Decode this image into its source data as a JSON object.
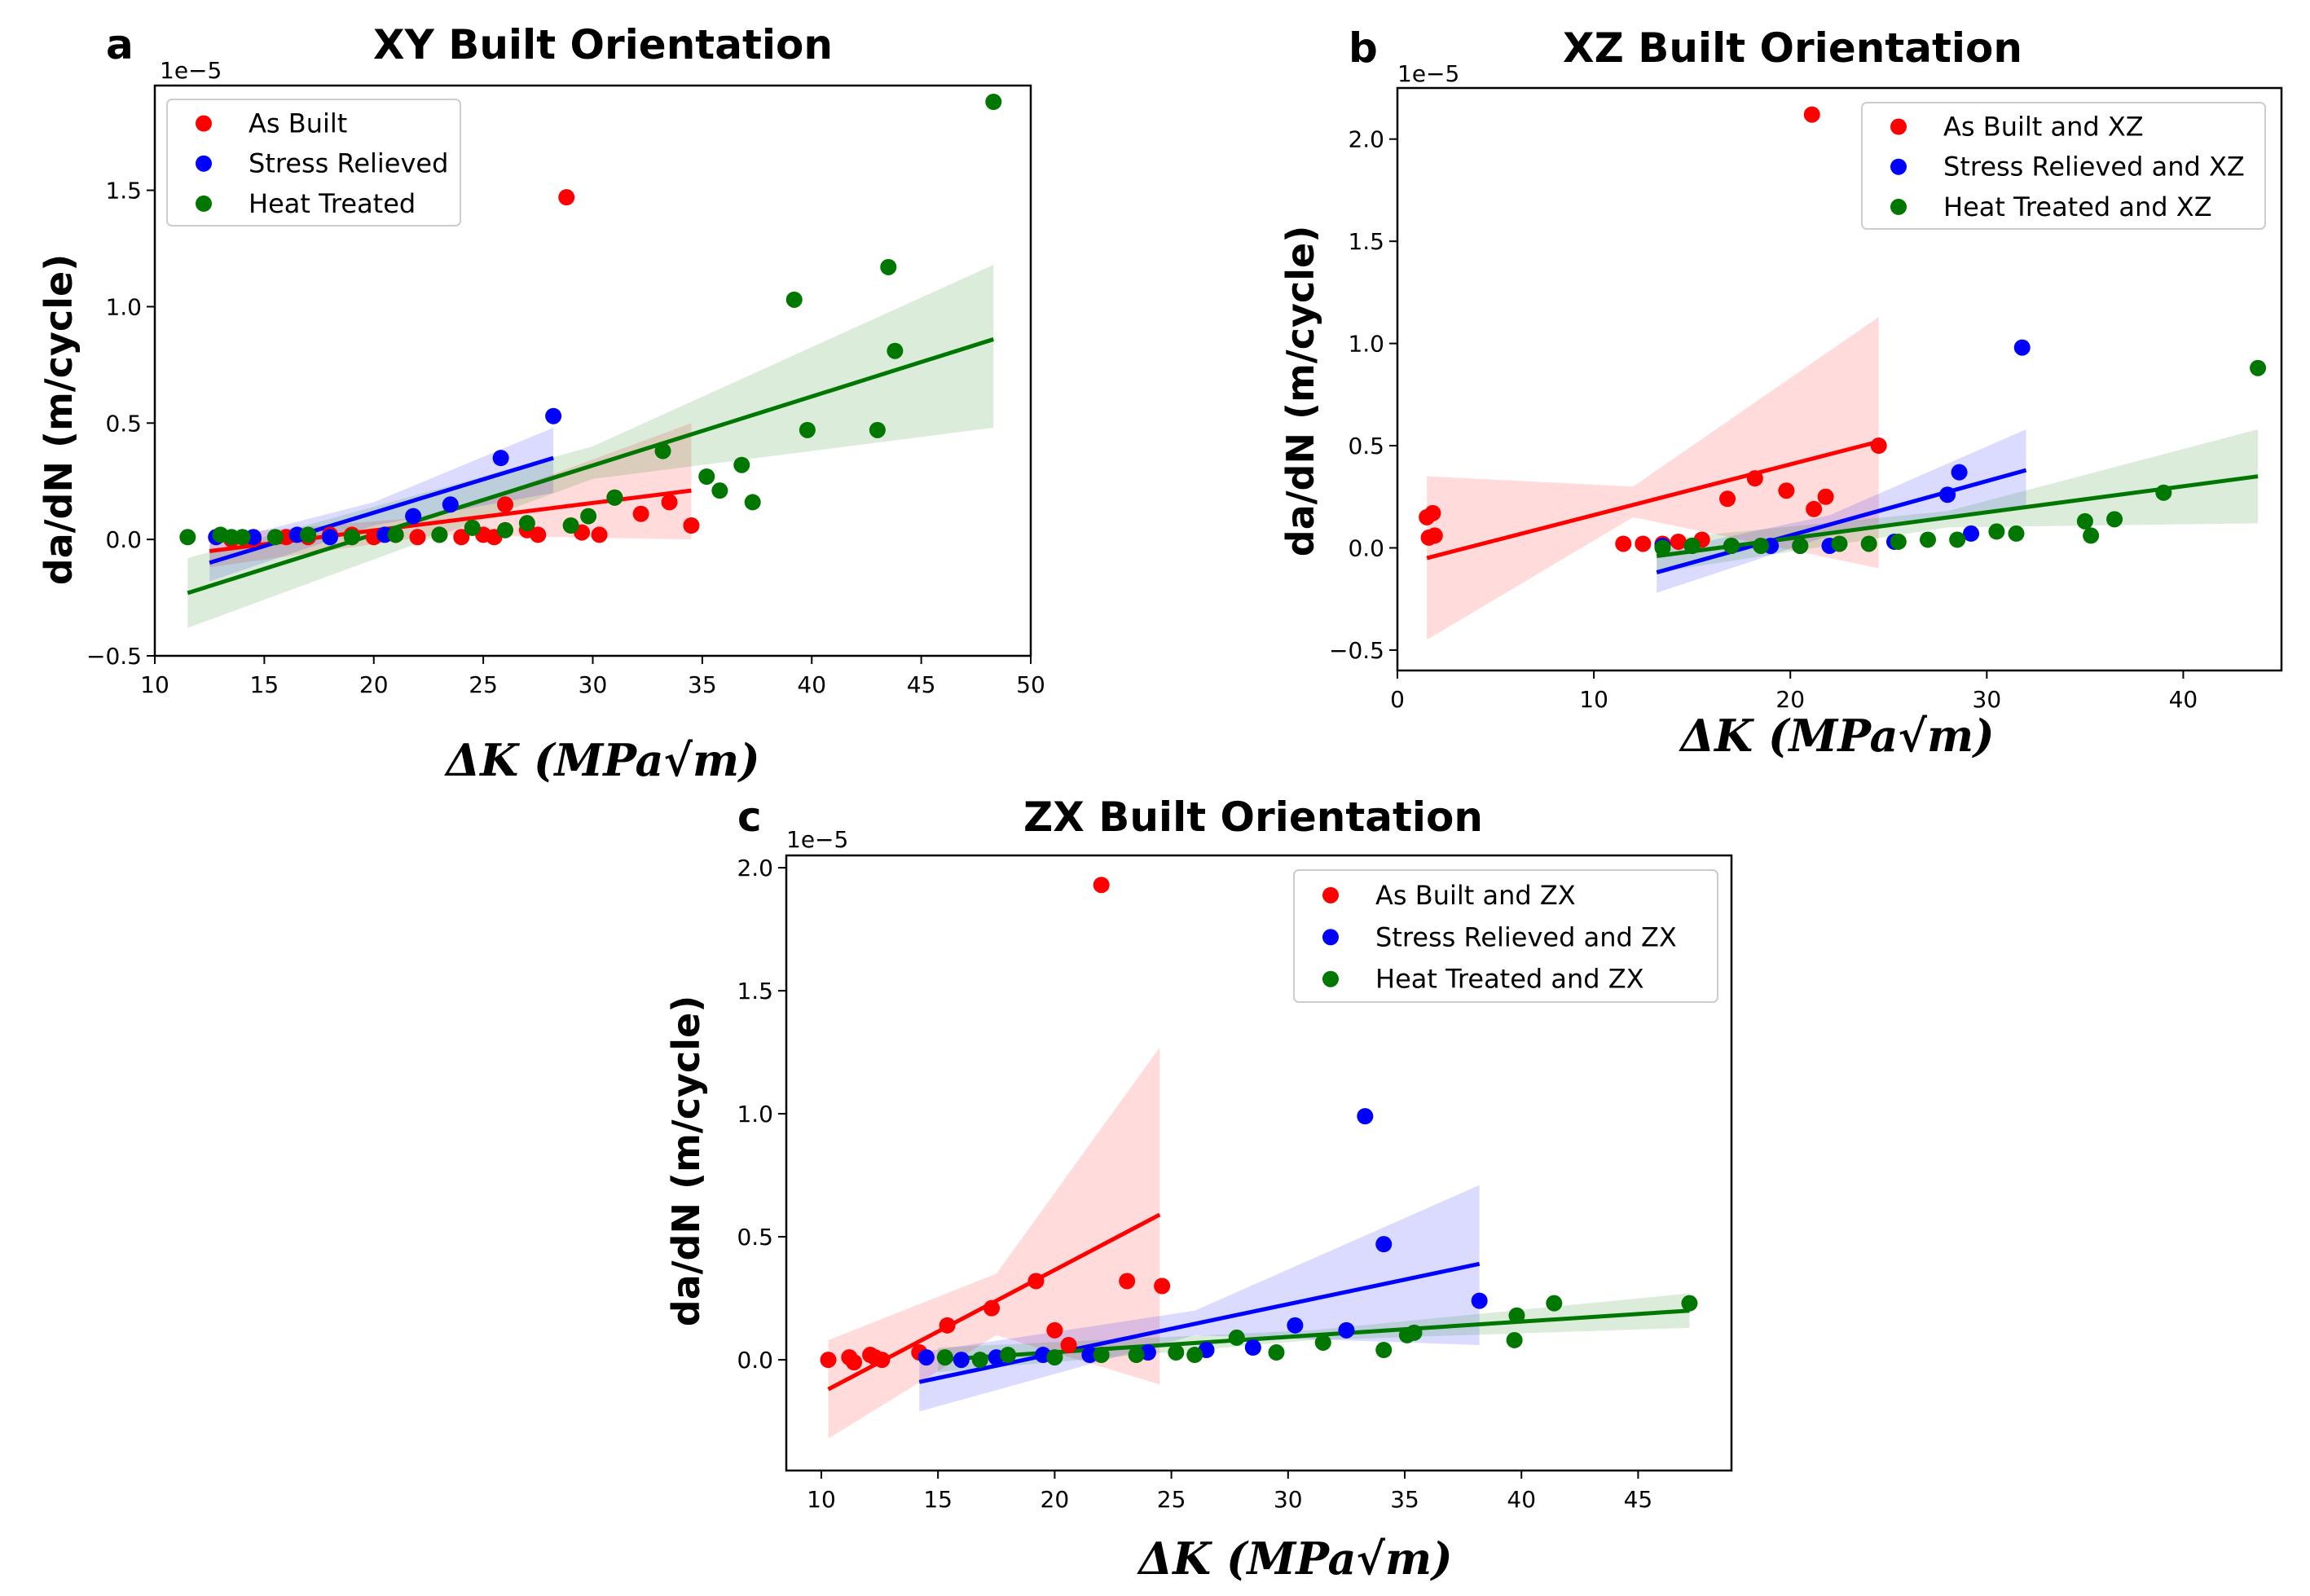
{
  "chart_data": [
    {
      "type": "scatter",
      "panel": "a",
      "title": "XY Built Orientation",
      "xlabel": "ΔK (MPa√m)",
      "ylabel": "da/dN (m/cycle)",
      "y_offset_label": "1e−5",
      "xlim": [
        10,
        50
      ],
      "ylim": [
        -0.5,
        1.95
      ],
      "xticks": [
        10,
        15,
        20,
        25,
        30,
        35,
        40,
        45,
        50
      ],
      "yticks": [
        -0.5,
        0.0,
        0.5,
        1.0,
        1.5
      ],
      "legend_position": "top-left",
      "series": [
        {
          "name": "As Built",
          "color": "#ff0000",
          "points": [
            [
              13.5,
              0.0
            ],
            [
              14.5,
              0.0
            ],
            [
              16,
              0.01
            ],
            [
              17,
              0.01
            ],
            [
              18,
              0.02
            ],
            [
              19,
              0.02
            ],
            [
              20,
              0.01
            ],
            [
              21,
              0.02
            ],
            [
              22,
              0.01
            ],
            [
              23,
              0.02
            ],
            [
              24,
              0.01
            ],
            [
              25,
              0.02
            ],
            [
              25.5,
              0.01
            ],
            [
              26,
              0.15
            ],
            [
              27,
              0.04
            ],
            [
              27.5,
              0.02
            ],
            [
              28.8,
              1.47
            ],
            [
              29.5,
              0.03
            ],
            [
              30.3,
              0.02
            ],
            [
              31,
              0.18
            ],
            [
              32.2,
              0.11
            ],
            [
              33.5,
              0.16
            ],
            [
              34.5,
              0.06
            ]
          ],
          "fit": [
            [
              12.5,
              -0.05
            ],
            [
              34.5,
              0.21
            ]
          ],
          "ci": [
            [
              12.5,
              -0.12,
              0.02
            ],
            [
              23,
              0.02,
              0.1
            ],
            [
              34.5,
              0.0,
              0.5
            ]
          ]
        },
        {
          "name": "Stress Relieved",
          "color": "#0000ff",
          "points": [
            [
              12.8,
              0.01
            ],
            [
              14.5,
              0.01
            ],
            [
              16.5,
              0.02
            ],
            [
              18,
              0.01
            ],
            [
              20.5,
              0.02
            ],
            [
              21.8,
              0.1
            ],
            [
              23.5,
              0.15
            ],
            [
              25.8,
              0.35
            ],
            [
              28.2,
              0.53
            ]
          ],
          "fit": [
            [
              12.5,
              -0.1
            ],
            [
              28.2,
              0.35
            ]
          ],
          "ci": [
            [
              12.5,
              -0.18,
              -0.02
            ],
            [
              20,
              0.06,
              0.16
            ],
            [
              28.2,
              0.2,
              0.48
            ]
          ]
        },
        {
          "name": "Heat Treated",
          "color": "#007700",
          "points": [
            [
              11.5,
              0.01
            ],
            [
              13,
              0.02
            ],
            [
              13.5,
              0.01
            ],
            [
              14,
              0.01
            ],
            [
              15.5,
              0.01
            ],
            [
              17,
              0.02
            ],
            [
              19,
              0.01
            ],
            [
              21,
              0.02
            ],
            [
              23,
              0.02
            ],
            [
              24.5,
              0.05
            ],
            [
              26,
              0.04
            ],
            [
              27,
              0.07
            ],
            [
              29,
              0.06
            ],
            [
              29.8,
              0.1
            ],
            [
              31,
              0.18
            ],
            [
              33.2,
              0.38
            ],
            [
              35.2,
              0.27
            ],
            [
              35.8,
              0.21
            ],
            [
              36.8,
              0.32
            ],
            [
              37.3,
              0.16
            ],
            [
              39.2,
              1.03
            ],
            [
              39.8,
              0.47
            ],
            [
              43,
              0.47
            ],
            [
              43.5,
              1.17
            ],
            [
              43.8,
              0.81
            ],
            [
              48.3,
              1.88
            ]
          ],
          "fit": [
            [
              11.5,
              -0.23
            ],
            [
              48.3,
              0.86
            ]
          ],
          "ci": [
            [
              11.5,
              -0.38,
              -0.08
            ],
            [
              30,
              0.26,
              0.4
            ],
            [
              48.3,
              0.48,
              1.18
            ]
          ]
        }
      ]
    },
    {
      "type": "scatter",
      "panel": "b",
      "title": "XZ Built Orientation",
      "xlabel": "ΔK (MPa√m)",
      "ylabel": "da/dN (m/cycle)",
      "y_offset_label": "1e−5",
      "xlim": [
        0,
        45
      ],
      "ylim": [
        -0.6,
        2.25
      ],
      "xticks": [
        0,
        10,
        20,
        30,
        40
      ],
      "yticks": [
        -0.5,
        0.0,
        0.5,
        1.0,
        1.5,
        2.0
      ],
      "legend_position": "top-right",
      "series": [
        {
          "name": "As Built and XZ",
          "color": "#ff0000",
          "points": [
            [
              1.5,
              0.15
            ],
            [
              1.6,
              0.05
            ],
            [
              1.8,
              0.17
            ],
            [
              1.9,
              0.06
            ],
            [
              11.5,
              0.02
            ],
            [
              12.5,
              0.02
            ],
            [
              13.5,
              0.02
            ],
            [
              14.3,
              0.03
            ],
            [
              15.5,
              0.04
            ],
            [
              16.8,
              0.24
            ],
            [
              18.2,
              0.34
            ],
            [
              19.8,
              0.28
            ],
            [
              21.2,
              0.19
            ],
            [
              21.8,
              0.25
            ],
            [
              21.1,
              2.12
            ],
            [
              24.5,
              0.5
            ]
          ],
          "fit": [
            [
              1.5,
              -0.05
            ],
            [
              24.5,
              0.52
            ]
          ],
          "ci": [
            [
              1.5,
              -0.45,
              0.35
            ],
            [
              12,
              0.15,
              0.3
            ],
            [
              24.5,
              -0.1,
              1.13
            ]
          ]
        },
        {
          "name": "Stress Relieved and XZ",
          "color": "#0000ff",
          "points": [
            [
              13.5,
              0.01
            ],
            [
              15,
              0.01
            ],
            [
              17,
              0.01
            ],
            [
              19,
              0.01
            ],
            [
              20.5,
              0.01
            ],
            [
              22,
              0.01
            ],
            [
              25.3,
              0.03
            ],
            [
              28,
              0.26
            ],
            [
              28.6,
              0.37
            ],
            [
              29.2,
              0.07
            ],
            [
              31.8,
              0.98
            ]
          ],
          "fit": [
            [
              13.2,
              -0.12
            ],
            [
              32,
              0.38
            ]
          ],
          "ci": [
            [
              13.2,
              -0.22,
              -0.02
            ],
            [
              22,
              0.06,
              0.16
            ],
            [
              32,
              0.2,
              0.58
            ]
          ]
        },
        {
          "name": "Heat Treated and XZ",
          "color": "#007700",
          "points": [
            [
              13.5,
              0.0
            ],
            [
              15,
              0.01
            ],
            [
              17,
              0.01
            ],
            [
              18.5,
              0.01
            ],
            [
              20.5,
              0.01
            ],
            [
              22.5,
              0.02
            ],
            [
              24,
              0.02
            ],
            [
              25.5,
              0.03
            ],
            [
              27,
              0.04
            ],
            [
              28.5,
              0.04
            ],
            [
              30.5,
              0.08
            ],
            [
              31.5,
              0.07
            ],
            [
              35,
              0.13
            ],
            [
              35.3,
              0.06
            ],
            [
              36.5,
              0.14
            ],
            [
              39,
              0.27
            ],
            [
              43.8,
              0.88
            ]
          ],
          "fit": [
            [
              13.2,
              -0.04
            ],
            [
              43.8,
              0.35
            ]
          ],
          "ci": [
            [
              13.2,
              -0.12,
              0.04
            ],
            [
              28,
              0.1,
              0.18
            ],
            [
              43.8,
              0.12,
              0.58
            ]
          ]
        }
      ]
    },
    {
      "type": "scatter",
      "panel": "c",
      "title": "ZX Built Orientation",
      "xlabel": "ΔK (MPa√m)",
      "ylabel": "da/dN (m/cycle)",
      "y_offset_label": "1e−5",
      "xlim": [
        8.5,
        49
      ],
      "ylim": [
        -0.45,
        2.05
      ],
      "xticks": [
        10,
        15,
        20,
        25,
        30,
        35,
        40,
        45
      ],
      "yticks": [
        0.0,
        0.5,
        1.0,
        1.5,
        2.0
      ],
      "legend_position": "top-right",
      "series": [
        {
          "name": "As Built and ZX",
          "color": "#ff0000",
          "points": [
            [
              10.3,
              0.0
            ],
            [
              11.2,
              0.01
            ],
            [
              11.4,
              -0.01
            ],
            [
              12.1,
              0.02
            ],
            [
              12.3,
              0.01
            ],
            [
              12.6,
              0.0
            ],
            [
              14.2,
              0.03
            ],
            [
              15.4,
              0.14
            ],
            [
              17.3,
              0.21
            ],
            [
              19.2,
              0.32
            ],
            [
              20,
              0.12
            ],
            [
              20.6,
              0.06
            ],
            [
              22,
              1.93
            ],
            [
              23.1,
              0.32
            ],
            [
              24.6,
              0.3
            ]
          ],
          "fit": [
            [
              10.3,
              -0.12
            ],
            [
              24.5,
              0.59
            ]
          ],
          "ci": [
            [
              10.3,
              -0.32,
              0.08
            ],
            [
              17.5,
              0.1,
              0.35
            ],
            [
              24.5,
              -0.1,
              1.27
            ]
          ]
        },
        {
          "name": "Stress Relieved and ZX",
          "color": "#0000ff",
          "points": [
            [
              14.5,
              0.01
            ],
            [
              16,
              0.0
            ],
            [
              17.5,
              0.01
            ],
            [
              19.5,
              0.02
            ],
            [
              21.5,
              0.02
            ],
            [
              24,
              0.03
            ],
            [
              26.5,
              0.04
            ],
            [
              28.5,
              0.05
            ],
            [
              30.3,
              0.14
            ],
            [
              32.5,
              0.12
            ],
            [
              33.3,
              0.99
            ],
            [
              34.1,
              0.47
            ],
            [
              38.2,
              0.24
            ]
          ],
          "fit": [
            [
              14.2,
              -0.09
            ],
            [
              38.2,
              0.39
            ]
          ],
          "ci": [
            [
              14.2,
              -0.21,
              0.03
            ],
            [
              26,
              0.1,
              0.2
            ],
            [
              38.2,
              0.06,
              0.71
            ]
          ]
        },
        {
          "name": "Heat Treated and ZX",
          "color": "#007700",
          "points": [
            [
              15.3,
              0.01
            ],
            [
              16.8,
              0.0
            ],
            [
              18,
              0.02
            ],
            [
              20,
              0.01
            ],
            [
              22,
              0.02
            ],
            [
              23.5,
              0.02
            ],
            [
              25.2,
              0.03
            ],
            [
              26,
              0.02
            ],
            [
              27.8,
              0.09
            ],
            [
              29.5,
              0.03
            ],
            [
              31.5,
              0.07
            ],
            [
              34.1,
              0.04
            ],
            [
              35.1,
              0.1
            ],
            [
              35.4,
              0.11
            ],
            [
              39.7,
              0.08
            ],
            [
              39.8,
              0.18
            ],
            [
              41.4,
              0.23
            ],
            [
              47.2,
              0.23
            ]
          ],
          "fit": [
            [
              15,
              0.0
            ],
            [
              47.2,
              0.2
            ]
          ],
          "ci": [
            [
              15,
              -0.05,
              0.05
            ],
            [
              31,
              0.08,
              0.12
            ],
            [
              47.2,
              0.13,
              0.27
            ]
          ]
        }
      ]
    }
  ]
}
